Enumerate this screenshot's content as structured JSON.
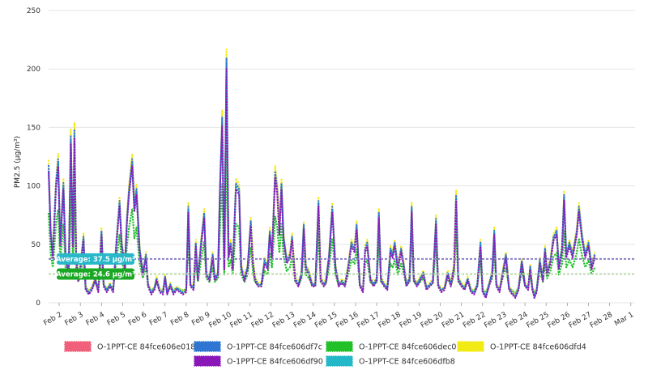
{
  "chart_data": {
    "type": "line",
    "ylabel": "PM2.5 (µg/m³)",
    "ylim": [
      0,
      250
    ],
    "yticks": [
      0,
      50,
      100,
      150,
      200,
      250
    ],
    "x_labels": [
      "Feb 2",
      "Feb 3",
      "Feb 4",
      "Feb 5",
      "Feb 6",
      "Feb 7",
      "Feb 8",
      "Feb 9",
      "Feb 10",
      "Feb 11",
      "Feb 12",
      "Feb 13",
      "Feb 14",
      "Feb 15",
      "Feb 16",
      "Feb 17",
      "Feb 18",
      "Feb 19",
      "Feb 20",
      "Feb 21",
      "Feb 22",
      "Feb 23",
      "Feb 24",
      "Feb 25",
      "Feb 26",
      "Feb 27",
      "Feb 28",
      "Mar 1"
    ],
    "x_start": 1.5,
    "x_end": 29.2,
    "base_profile": [
      [
        1.5,
        115
      ],
      [
        1.6,
        60
      ],
      [
        1.7,
        40
      ],
      [
        1.85,
        100
      ],
      [
        1.95,
        120
      ],
      [
        2.05,
        50
      ],
      [
        2.2,
        100
      ],
      [
        2.3,
        40
      ],
      [
        2.45,
        25
      ],
      [
        2.55,
        140
      ],
      [
        2.65,
        50
      ],
      [
        2.72,
        145
      ],
      [
        2.8,
        40
      ],
      [
        2.9,
        20
      ],
      [
        3.0,
        30
      ],
      [
        3.15,
        55
      ],
      [
        3.25,
        12
      ],
      [
        3.4,
        8
      ],
      [
        3.55,
        12
      ],
      [
        3.7,
        20
      ],
      [
        3.85,
        10
      ],
      [
        4.0,
        60
      ],
      [
        4.1,
        15
      ],
      [
        4.25,
        10
      ],
      [
        4.4,
        15
      ],
      [
        4.55,
        10
      ],
      [
        4.7,
        50
      ],
      [
        4.85,
        85
      ],
      [
        4.95,
        50
      ],
      [
        5.1,
        30
      ],
      [
        5.2,
        70
      ],
      [
        5.3,
        95
      ],
      [
        5.45,
        120
      ],
      [
        5.55,
        80
      ],
      [
        5.65,
        95
      ],
      [
        5.8,
        45
      ],
      [
        5.95,
        25
      ],
      [
        6.1,
        40
      ],
      [
        6.2,
        15
      ],
      [
        6.35,
        8
      ],
      [
        6.5,
        12
      ],
      [
        6.6,
        20
      ],
      [
        6.75,
        10
      ],
      [
        6.9,
        8
      ],
      [
        7.0,
        22
      ],
      [
        7.1,
        8
      ],
      [
        7.25,
        15
      ],
      [
        7.4,
        8
      ],
      [
        7.55,
        12
      ],
      [
        7.7,
        10
      ],
      [
        7.85,
        8
      ],
      [
        8.0,
        10
      ],
      [
        8.1,
        80
      ],
      [
        8.2,
        15
      ],
      [
        8.35,
        12
      ],
      [
        8.45,
        50
      ],
      [
        8.55,
        20
      ],
      [
        8.7,
        50
      ],
      [
        8.85,
        75
      ],
      [
        8.95,
        25
      ],
      [
        9.1,
        20
      ],
      [
        9.25,
        40
      ],
      [
        9.35,
        20
      ],
      [
        9.5,
        25
      ],
      [
        9.6,
        100
      ],
      [
        9.7,
        155
      ],
      [
        9.8,
        30
      ],
      [
        9.9,
        205
      ],
      [
        10.0,
        40
      ],
      [
        10.1,
        50
      ],
      [
        10.2,
        30
      ],
      [
        10.35,
        100
      ],
      [
        10.5,
        95
      ],
      [
        10.6,
        30
      ],
      [
        10.75,
        20
      ],
      [
        10.9,
        30
      ],
      [
        11.05,
        68
      ],
      [
        11.15,
        35
      ],
      [
        11.25,
        20
      ],
      [
        11.4,
        15
      ],
      [
        11.55,
        15
      ],
      [
        11.7,
        35
      ],
      [
        11.85,
        30
      ],
      [
        11.95,
        60
      ],
      [
        12.05,
        40
      ],
      [
        12.2,
        110
      ],
      [
        12.3,
        95
      ],
      [
        12.4,
        60
      ],
      [
        12.5,
        100
      ],
      [
        12.6,
        55
      ],
      [
        12.75,
        35
      ],
      [
        12.9,
        40
      ],
      [
        13.0,
        55
      ],
      [
        13.15,
        20
      ],
      [
        13.3,
        15
      ],
      [
        13.45,
        25
      ],
      [
        13.55,
        65
      ],
      [
        13.65,
        30
      ],
      [
        13.8,
        25
      ],
      [
        13.95,
        15
      ],
      [
        14.1,
        15
      ],
      [
        14.25,
        85
      ],
      [
        14.35,
        20
      ],
      [
        14.5,
        15
      ],
      [
        14.6,
        18
      ],
      [
        14.75,
        40
      ],
      [
        14.9,
        80
      ],
      [
        15.05,
        30
      ],
      [
        15.2,
        15
      ],
      [
        15.35,
        18
      ],
      [
        15.5,
        15
      ],
      [
        15.65,
        30
      ],
      [
        15.8,
        50
      ],
      [
        15.95,
        45
      ],
      [
        16.05,
        65
      ],
      [
        16.2,
        15
      ],
      [
        16.35,
        10
      ],
      [
        16.45,
        45
      ],
      [
        16.55,
        50
      ],
      [
        16.7,
        20
      ],
      [
        16.85,
        15
      ],
      [
        17.0,
        20
      ],
      [
        17.1,
        75
      ],
      [
        17.2,
        20
      ],
      [
        17.35,
        15
      ],
      [
        17.5,
        12
      ],
      [
        17.65,
        45
      ],
      [
        17.75,
        40
      ],
      [
        17.85,
        50
      ],
      [
        18.0,
        30
      ],
      [
        18.15,
        45
      ],
      [
        18.25,
        35
      ],
      [
        18.4,
        15
      ],
      [
        18.55,
        20
      ],
      [
        18.65,
        80
      ],
      [
        18.75,
        20
      ],
      [
        18.9,
        15
      ],
      [
        19.05,
        20
      ],
      [
        19.2,
        25
      ],
      [
        19.35,
        12
      ],
      [
        19.5,
        15
      ],
      [
        19.65,
        18
      ],
      [
        19.8,
        70
      ],
      [
        19.9,
        15
      ],
      [
        20.05,
        10
      ],
      [
        20.2,
        12
      ],
      [
        20.35,
        25
      ],
      [
        20.5,
        15
      ],
      [
        20.65,
        30
      ],
      [
        20.75,
        90
      ],
      [
        20.85,
        20
      ],
      [
        21.0,
        15
      ],
      [
        21.15,
        12
      ],
      [
        21.3,
        20
      ],
      [
        21.45,
        10
      ],
      [
        21.6,
        8
      ],
      [
        21.75,
        15
      ],
      [
        21.9,
        50
      ],
      [
        22.0,
        10
      ],
      [
        22.15,
        5
      ],
      [
        22.3,
        15
      ],
      [
        22.45,
        25
      ],
      [
        22.55,
        60
      ],
      [
        22.65,
        15
      ],
      [
        22.8,
        10
      ],
      [
        22.95,
        25
      ],
      [
        23.1,
        40
      ],
      [
        23.25,
        12
      ],
      [
        23.4,
        8
      ],
      [
        23.55,
        5
      ],
      [
        23.7,
        12
      ],
      [
        23.85,
        35
      ],
      [
        24.0,
        15
      ],
      [
        24.15,
        12
      ],
      [
        24.25,
        30
      ],
      [
        24.35,
        12
      ],
      [
        24.45,
        5
      ],
      [
        24.55,
        10
      ],
      [
        24.7,
        35
      ],
      [
        24.85,
        20
      ],
      [
        24.95,
        45
      ],
      [
        25.05,
        25
      ],
      [
        25.2,
        35
      ],
      [
        25.35,
        55
      ],
      [
        25.5,
        60
      ],
      [
        25.6,
        30
      ],
      [
        25.75,
        45
      ],
      [
        25.85,
        90
      ],
      [
        25.95,
        40
      ],
      [
        26.1,
        50
      ],
      [
        26.25,
        40
      ],
      [
        26.45,
        60
      ],
      [
        26.55,
        80
      ],
      [
        26.7,
        55
      ],
      [
        26.85,
        40
      ],
      [
        27.0,
        50
      ],
      [
        27.15,
        30
      ],
      [
        27.3,
        40
      ]
    ],
    "series": [
      {
        "name": "O-1PPT-CE 84fce606e018",
        "color": "#f0607a"
      },
      {
        "name": "O-1PPT-CE 84fce606df7c",
        "color": "#2f76d2"
      },
      {
        "name": "O-1PPT-CE 84fce606dec0",
        "color": "#22c12a"
      },
      {
        "name": "O-1PPT-CE 84fce606dfd4",
        "color": "#f2ea14"
      },
      {
        "name": "O-1PPT-CE 84fce606df90",
        "color": "#8a18b8"
      },
      {
        "name": "O-1PPT-CE 84fce606dfb8",
        "color": "#22b8c8"
      }
    ],
    "averages": [
      {
        "label": "Average: 37.5 µg/m³",
        "value": 37.5,
        "color": "#28b8c8",
        "line_color": "#8a80c8"
      },
      {
        "label": "Average: 24.6 µg/m³",
        "value": 24.6,
        "color": "#1aa824",
        "line_color": "#b8d8a8"
      }
    ]
  }
}
